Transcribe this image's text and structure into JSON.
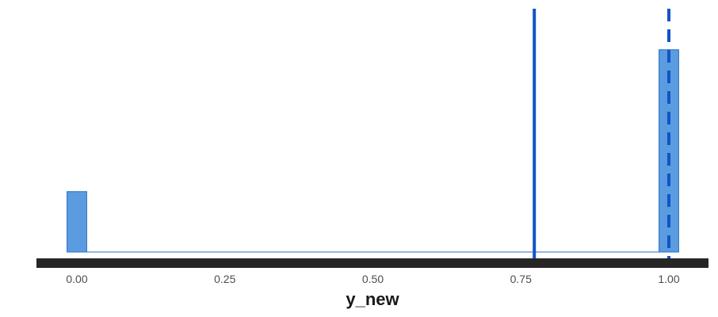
{
  "chart_data": {
    "type": "bar",
    "title": "",
    "xlabel": "y_new",
    "ylabel": "",
    "xlim": [
      -0.05,
      1.05
    ],
    "ylim": [
      0,
      0.92
    ],
    "x_ticks": [
      {
        "value": 0.0,
        "label": "0.00"
      },
      {
        "value": 0.25,
        "label": "0.25"
      },
      {
        "value": 0.5,
        "label": "0.50"
      },
      {
        "value": 0.75,
        "label": "0.75"
      },
      {
        "value": 1.0,
        "label": "1.00"
      }
    ],
    "bin_width": 0.0333,
    "bins": [
      {
        "x": 0.0,
        "value": 0.23
      },
      {
        "x": 1.0,
        "value": 0.77
      }
    ],
    "reference_lines": [
      {
        "x": 0.7727,
        "style": "solid"
      },
      {
        "x": 1.0,
        "style": "dashed"
      }
    ],
    "grid": false,
    "colors": {
      "bar_fill": "#5b9be0",
      "bar_stroke": "#2a6fc2",
      "line": "#1155c4",
      "axis": "#262626"
    }
  }
}
